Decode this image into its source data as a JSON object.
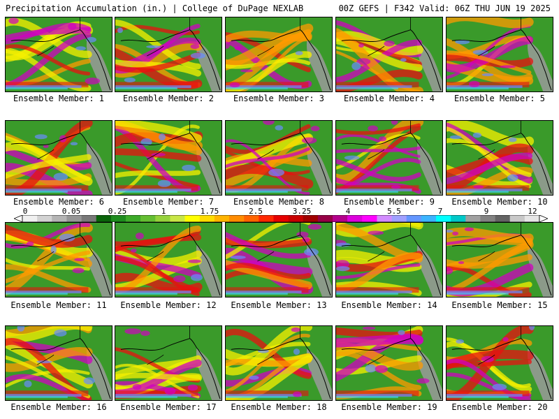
{
  "header": {
    "left": "Precipitation Accumulation (in.) | College of DuPage NEXLAB",
    "right": "00Z GEFS | F342 Valid: 06Z THU JUN 19 2025"
  },
  "members": [
    {
      "label": "Ensemble Member: 1"
    },
    {
      "label": "Ensemble Member: 2"
    },
    {
      "label": "Ensemble Member: 3"
    },
    {
      "label": "Ensemble Member: 4"
    },
    {
      "label": "Ensemble Member: 5"
    },
    {
      "label": "Ensemble Member: 6"
    },
    {
      "label": "Ensemble Member: 7"
    },
    {
      "label": "Ensemble Member: 8"
    },
    {
      "label": "Ensemble Member: 9"
    },
    {
      "label": "Ensemble Member: 10"
    },
    {
      "label": "Ensemble Member: 11"
    },
    {
      "label": "Ensemble Member: 12"
    },
    {
      "label": "Ensemble Member: 13"
    },
    {
      "label": "Ensemble Member: 14"
    },
    {
      "label": "Ensemble Member: 15"
    },
    {
      "label": "Ensemble Member: 16"
    },
    {
      "label": "Ensemble Member: 17"
    },
    {
      "label": "Ensemble Member: 18"
    },
    {
      "label": "Ensemble Member: 19"
    },
    {
      "label": "Ensemble Member: 20"
    }
  ],
  "colorbar": {
    "tick_labels": [
      "0",
      "0.05",
      "0.25",
      "1",
      "1.75",
      "2.5",
      "3.25",
      "4",
      "5.5",
      "7",
      "9",
      "12"
    ],
    "colors": [
      "#f0f0f0",
      "#d2d2d2",
      "#b4b4b4",
      "#969696",
      "#787878",
      "#0a640a",
      "#1e8c1e",
      "#3caa28",
      "#64be32",
      "#96d23c",
      "#c8e646",
      "#ffff00",
      "#ffdc00",
      "#ffb400",
      "#ff8c00",
      "#ff6400",
      "#ff2800",
      "#e60000",
      "#c80000",
      "#a00000",
      "#960046",
      "#b4008c",
      "#dc00dc",
      "#ff00ff",
      "#d28cff",
      "#a0a0ff",
      "#6496ff",
      "#3cb4ff",
      "#00ffff",
      "#00c8c8",
      "#a0a0a0",
      "#828282",
      "#646464",
      "#c8c8c8",
      "#e6e6e6"
    ]
  },
  "palette": {
    "ocean_green": "#3a9a2a",
    "land_gray": "#9a9a9a",
    "yellow": "#f7f000",
    "orange": "#ff9a00",
    "red": "#e81010",
    "magenta": "#d000c0",
    "blue": "#6a8cff",
    "cyan": "#40d8ff"
  }
}
